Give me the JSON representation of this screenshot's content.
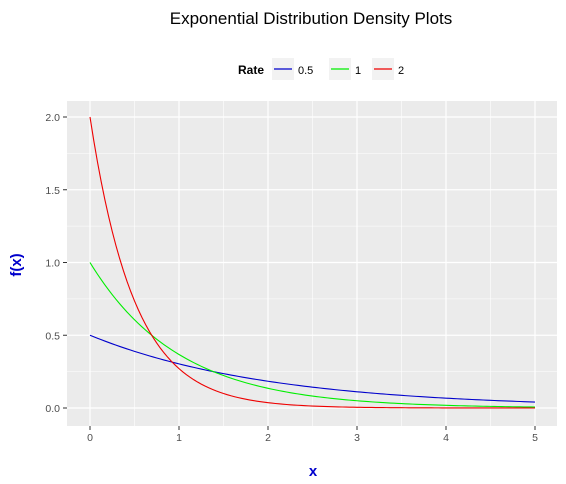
{
  "chart_data": {
    "type": "line",
    "title": "Exponential Distribution Density Plots",
    "xlabel": "x",
    "ylabel": "f(x)",
    "label_color": "#0000cc",
    "xlim": [
      0,
      5
    ],
    "ylim": [
      0,
      2
    ],
    "x_ticks": [
      0,
      1,
      2,
      3,
      4,
      5
    ],
    "y_ticks": [
      0,
      0.5,
      1,
      1.5,
      2
    ],
    "x_tick_labels": [
      "0",
      "1",
      "2",
      "3",
      "4",
      "5"
    ],
    "y_tick_labels": [
      "0.0",
      "0.5",
      "1.0",
      "1.5",
      "2.0"
    ],
    "grid": true,
    "panel_background": "#ebebeb",
    "grid_color": "#ffffff",
    "legend": {
      "title": "Rate",
      "position": "top"
    },
    "x": [
      0,
      0.25,
      0.5,
      0.75,
      1,
      1.25,
      1.5,
      1.75,
      2,
      2.25,
      2.5,
      2.75,
      3,
      3.25,
      3.5,
      3.75,
      4,
      4.25,
      4.5,
      4.75,
      5
    ],
    "series": [
      {
        "name": "0.5",
        "color": "#0000cc",
        "values": [
          0.5,
          0.441,
          0.389,
          0.344,
          0.303,
          0.268,
          0.236,
          0.208,
          0.184,
          0.162,
          0.143,
          0.126,
          0.112,
          0.098,
          0.087,
          0.077,
          0.068,
          0.06,
          0.053,
          0.046,
          0.041
        ]
      },
      {
        "name": "1",
        "color": "#00ee00",
        "values": [
          1.0,
          0.779,
          0.607,
          0.472,
          0.368,
          0.287,
          0.223,
          0.174,
          0.135,
          0.105,
          0.082,
          0.064,
          0.05,
          0.039,
          0.03,
          0.024,
          0.018,
          0.014,
          0.011,
          0.009,
          0.007
        ]
      },
      {
        "name": "2",
        "color": "#ee0000",
        "values": [
          2.0,
          1.213,
          0.736,
          0.446,
          0.271,
          0.164,
          0.1,
          0.06,
          0.037,
          0.022,
          0.013,
          0.008,
          0.005,
          0.003,
          0.002,
          0.001,
          0.001,
          0.0,
          0.0,
          0.0,
          0.0
        ]
      }
    ]
  }
}
